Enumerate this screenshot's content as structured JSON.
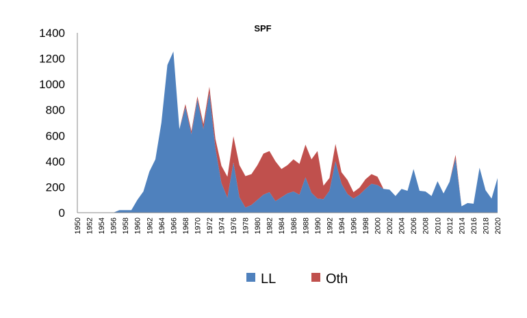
{
  "chart_data": {
    "type": "area",
    "stacked": true,
    "title": "SPF",
    "xlabel": "",
    "ylabel": "",
    "ylim": [
      0,
      1400
    ],
    "yticks": [
      0,
      200,
      400,
      600,
      800,
      1000,
      1200,
      1400
    ],
    "x": [
      1950,
      1951,
      1952,
      1953,
      1954,
      1955,
      1956,
      1957,
      1958,
      1959,
      1960,
      1961,
      1962,
      1963,
      1964,
      1965,
      1966,
      1967,
      1968,
      1969,
      1970,
      1971,
      1972,
      1973,
      1974,
      1975,
      1976,
      1977,
      1978,
      1979,
      1980,
      1981,
      1982,
      1983,
      1984,
      1985,
      1986,
      1987,
      1988,
      1989,
      1990,
      1991,
      1992,
      1993,
      1994,
      1995,
      1996,
      1997,
      1998,
      1999,
      2000,
      2001,
      2002,
      2003,
      2004,
      2005,
      2006,
      2007,
      2008,
      2009,
      2010,
      2011,
      2012,
      2013,
      2014,
      2015,
      2016,
      2017,
      2018,
      2019,
      2020
    ],
    "xtick_labels": [
      "1950",
      "1952",
      "1954",
      "1956",
      "1958",
      "1960",
      "1962",
      "1964",
      "1966",
      "1968",
      "1970",
      "1972",
      "1974",
      "1976",
      "1978",
      "1980",
      "1982",
      "1984",
      "1986",
      "1988",
      "1990",
      "1992",
      "1994",
      "1996",
      "1998",
      "2000",
      "2002",
      "2004",
      "2006",
      "2008",
      "2010",
      "2012",
      "2014",
      "2016",
      "2018",
      "2020"
    ],
    "series": [
      {
        "name": "LL",
        "color": "#4F81BD",
        "values": [
          0,
          0,
          0,
          0,
          0,
          0,
          0,
          20,
          20,
          20,
          100,
          165,
          320,
          415,
          700,
          1150,
          1255,
          650,
          820,
          610,
          880,
          650,
          930,
          500,
          230,
          115,
          390,
          120,
          40,
          60,
          100,
          140,
          160,
          90,
          120,
          150,
          165,
          140,
          275,
          155,
          110,
          105,
          170,
          400,
          225,
          145,
          110,
          140,
          185,
          225,
          215,
          185,
          180,
          130,
          185,
          170,
          340,
          170,
          165,
          130,
          245,
          150,
          240,
          420,
          50,
          75,
          70,
          350,
          175,
          110,
          270
        ]
      },
      {
        "name": "Oth",
        "color": "#C0504D",
        "values": [
          0,
          0,
          0,
          0,
          0,
          0,
          0,
          0,
          0,
          0,
          0,
          0,
          0,
          0,
          0,
          0,
          0,
          0,
          25,
          25,
          25,
          40,
          50,
          75,
          135,
          165,
          205,
          250,
          245,
          240,
          270,
          320,
          320,
          310,
          220,
          220,
          250,
          240,
          255,
          260,
          370,
          105,
          100,
          135,
          90,
          110,
          50,
          55,
          75,
          75,
          65,
          0,
          0,
          0,
          0,
          0,
          0,
          0,
          0,
          0,
          0,
          0,
          0,
          30,
          0,
          0,
          0,
          0,
          0,
          0,
          0
        ]
      }
    ],
    "grid": false,
    "legend": "bottom"
  }
}
